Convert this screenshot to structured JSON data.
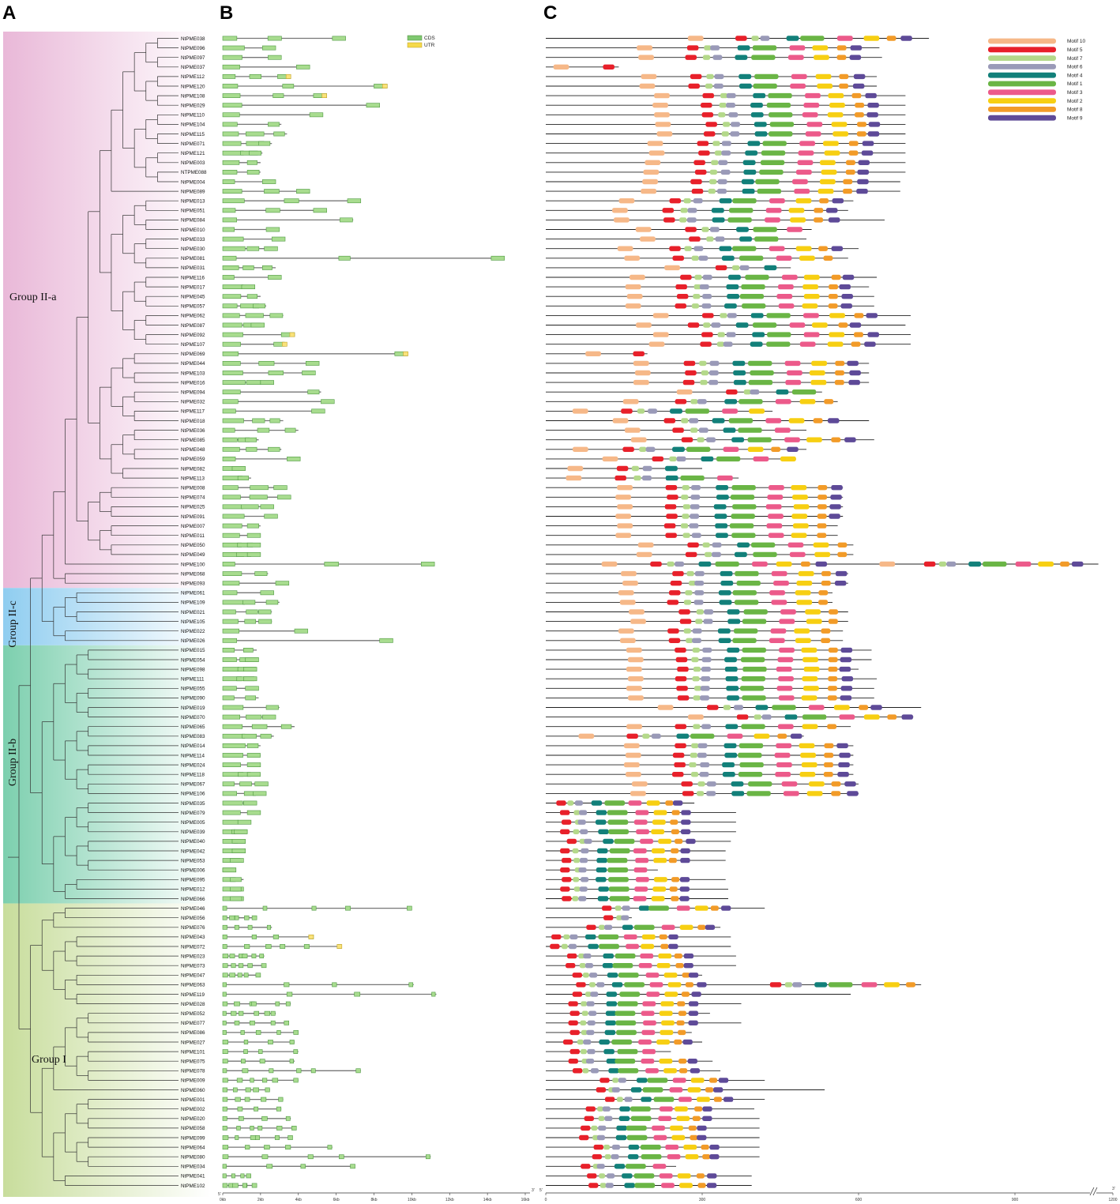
{
  "panels": {
    "a": "A",
    "b": "B",
    "c": "C"
  },
  "genes": [
    "NtPME038",
    "NtPME096",
    "NtPME097",
    "NtPME037",
    "NtPME112",
    "NtPME120",
    "NtPME108",
    "NtPME029",
    "NtPME110",
    "NtPME104",
    "NtPME115",
    "NtPME071",
    "NtPME121",
    "NtPME003",
    "NTPME088",
    "NtPME004",
    "NtPME089",
    "NtPME013",
    "NtPME051",
    "NtPME084",
    "NtPME010",
    "NtPME033",
    "NtPME030",
    "NtPME081",
    "NtPME031",
    "NtPME116",
    "NtPME017",
    "NtPME045",
    "NtPME057",
    "NtPME062",
    "NtPME087",
    "NtPME092",
    "NtPME107",
    "NtPME069",
    "NtPME044",
    "NtPME103",
    "NtPME016",
    "NtPME094",
    "NtPME032",
    "NtPME117",
    "NtPME018",
    "NtPME036",
    "NtPME085",
    "NtPME048",
    "NtPME059",
    "NtPME082",
    "NtPME113",
    "NtPME008",
    "NtPME074",
    "NtPME025",
    "NtPME091",
    "NtPME007",
    "NtPME011",
    "NtPME050",
    "NtPME049",
    "NtPME100",
    "NtPME068",
    "NtPME093",
    "NtPME061",
    "NtPME109",
    "NtPME021",
    "NtPME105",
    "NtPME022",
    "NtPME026",
    "NtPME015",
    "NtPME054",
    "NtPME098",
    "NtPME111",
    "NtPME055",
    "NtPME090",
    "NtPME019",
    "NtPME070",
    "NtPME065",
    "NtPME083",
    "NtPME014",
    "NtPME114",
    "NtPME024",
    "NtPME118",
    "NtPME067",
    "NtPME106",
    "NtPME035",
    "NtPME079",
    "NtPME005",
    "NtPME039",
    "NtPME040",
    "NtPME042",
    "NtPME053",
    "NtPME006",
    "NtPME095",
    "NtPME012",
    "NtPME066",
    "NtPME046",
    "NtPME056",
    "NtPME076",
    "NtPME043",
    "NtPME072",
    "NtPME023",
    "NtPME073",
    "NtPME047",
    "NtPME063",
    "NtPME119",
    "NtPME028",
    "NtPME052",
    "NtPME077",
    "NtPME086",
    "NtPME027",
    "NtPME101",
    "NtPME075",
    "NtPME078",
    "NtPME009",
    "NtPME060",
    "NtPME001",
    "NtPME002",
    "NtPME020",
    "NtPME058",
    "NtPME099",
    "NtPME064",
    "NtPME080",
    "NtPME034",
    "NtPME041",
    "NtPME102"
  ],
  "groups": [
    {
      "label": "Group II-a",
      "color_start": "#e9b8d8",
      "color_end": "#ffffff",
      "first_gene": 0,
      "last_gene": 57
    },
    {
      "label": "Group II-c",
      "color_start": "#8fcdf0",
      "color_end": "#ffffff",
      "first_gene": 58,
      "last_gene": 63
    },
    {
      "label": "Group II-b",
      "color_start": "#7ccfae",
      "color_end": "#ffffff",
      "first_gene": 64,
      "last_gene": 90
    },
    {
      "label": "Group I",
      "color_start": "#c8dd9c",
      "color_end": "#ffffff",
      "first_gene": 91,
      "last_gene": 120
    }
  ],
  "gene_structure": {
    "legend": [
      {
        "label": "CDS",
        "color": "#7fc870"
      },
      {
        "label": "UTR",
        "color": "#f5d94a"
      }
    ],
    "axis_ticks": [
      "0kb",
      "2kb",
      "4kb",
      "6kb",
      "8kb",
      "10kb",
      "12kb",
      "14kb",
      "16kb"
    ],
    "axis_end": "3'",
    "axis_start": "5'"
  },
  "motifs": {
    "legend": [
      {
        "label": "Motif 10",
        "color": "#f6b888"
      },
      {
        "label": "Motif 5",
        "color": "#e8202a"
      },
      {
        "label": "Motif 7",
        "color": "#b4d98a"
      },
      {
        "label": "Motif 6",
        "color": "#9a9ab8"
      },
      {
        "label": "Motif 4",
        "color": "#12807a"
      },
      {
        "label": "Motif 1",
        "color": "#6ab545"
      },
      {
        "label": "Motif 3",
        "color": "#ec5a8a"
      },
      {
        "label": "Motif 2",
        "color": "#f7cf12"
      },
      {
        "label": "Motif 8",
        "color": "#f29b28"
      },
      {
        "label": "Motif 9",
        "color": "#5e4a98"
      }
    ],
    "axis_ticks": [
      "0",
      "300",
      "600",
      "900",
      "1200"
    ],
    "axis_end": "3'",
    "axis_start": "5'"
  }
}
